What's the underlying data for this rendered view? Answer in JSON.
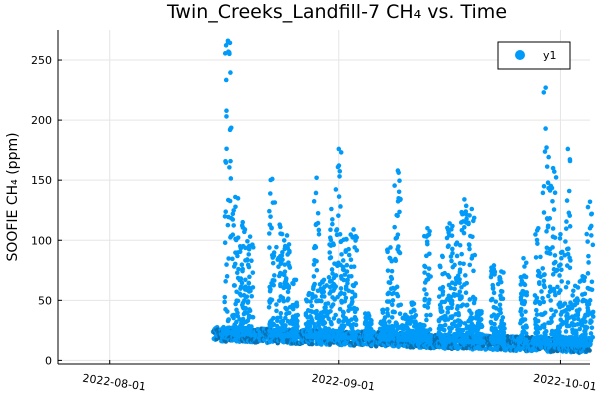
{
  "chart_data": {
    "type": "scatter",
    "title": "Twin_Creeks_Landfill-7 CH₄ vs. Time",
    "xlabel": "",
    "ylabel": "SOOFIE CH₄ (ppm)",
    "x_ticks": [
      "2022-08-01",
      "2022-09-01",
      "2022-10-01"
    ],
    "x_range": [
      "2022-07-25",
      "2022-10-05"
    ],
    "y_ticks": [
      0,
      50,
      100,
      150,
      200,
      250
    ],
    "ylim": [
      -3,
      275
    ],
    "grid": true,
    "legend": {
      "position": "top-right",
      "entries": [
        "y1"
      ]
    },
    "colors": {
      "series": "#009af9"
    },
    "series": [
      {
        "name": "y1",
        "x_start": "2022-08-15",
        "x_end": "2022-10-05",
        "baseline_start": 22,
        "baseline_end": 12,
        "spikes": [
          {
            "date": "2022-08-17",
            "peak": 266
          },
          {
            "date": "2022-08-18",
            "peak": 136
          },
          {
            "date": "2022-08-19",
            "peak": 115
          },
          {
            "date": "2022-08-20",
            "peak": 103
          },
          {
            "date": "2022-08-23",
            "peak": 151
          },
          {
            "date": "2022-08-24",
            "peak": 113
          },
          {
            "date": "2022-08-25",
            "peak": 104
          },
          {
            "date": "2022-08-26",
            "peak": 67
          },
          {
            "date": "2022-08-28",
            "peak": 56
          },
          {
            "date": "2022-08-29",
            "peak": 152
          },
          {
            "date": "2022-08-30",
            "peak": 67
          },
          {
            "date": "2022-08-31",
            "peak": 126
          },
          {
            "date": "2022-09-01",
            "peak": 176
          },
          {
            "date": "2022-09-02",
            "peak": 101
          },
          {
            "date": "2022-09-03",
            "peak": 109
          },
          {
            "date": "2022-09-05",
            "peak": 39
          },
          {
            "date": "2022-09-07",
            "peak": 42
          },
          {
            "date": "2022-09-08",
            "peak": 94
          },
          {
            "date": "2022-09-09",
            "peak": 158
          },
          {
            "date": "2022-09-10",
            "peak": 38
          },
          {
            "date": "2022-09-11",
            "peak": 48
          },
          {
            "date": "2022-09-12",
            "peak": 30
          },
          {
            "date": "2022-09-13",
            "peak": 110
          },
          {
            "date": "2022-09-15",
            "peak": 87
          },
          {
            "date": "2022-09-16",
            "peak": 114
          },
          {
            "date": "2022-09-17",
            "peak": 98
          },
          {
            "date": "2022-09-18",
            "peak": 134
          },
          {
            "date": "2022-09-19",
            "peak": 126
          },
          {
            "date": "2022-09-20",
            "peak": 41
          },
          {
            "date": "2022-09-22",
            "peak": 79
          },
          {
            "date": "2022-09-23",
            "peak": 74
          },
          {
            "date": "2022-09-26",
            "peak": 85
          },
          {
            "date": "2022-09-28",
            "peak": 110
          },
          {
            "date": "2022-09-29",
            "peak": 227
          },
          {
            "date": "2022-09-30",
            "peak": 160
          },
          {
            "date": "2022-10-01",
            "peak": 105
          },
          {
            "date": "2022-10-02",
            "peak": 176
          },
          {
            "date": "2022-10-03",
            "peak": 62
          },
          {
            "date": "2022-10-04",
            "peak": 70
          },
          {
            "date": "2022-10-05",
            "peak": 132
          }
        ]
      }
    ]
  }
}
